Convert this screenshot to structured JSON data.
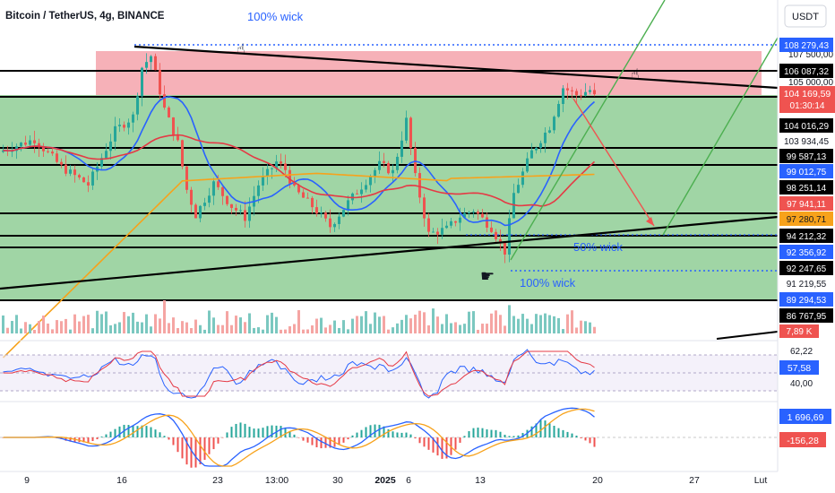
{
  "header": {
    "symbol_title": "Bitcoin / TetherUS, 4g, BINANCE",
    "currency_button": "USDT"
  },
  "colors": {
    "resistance_zone": "#f4a3ab",
    "support_zone": "#8fce95",
    "sma_blue": "#2962ff",
    "sma_red": "#e53945",
    "sma_orange": "#f7a21b",
    "trend_green": "#4caf50",
    "candle_up": "#26a69a",
    "candle_down": "#ef5350",
    "annotation_blue": "#2962ff",
    "projection_red": "#ef5350"
  },
  "annotations": {
    "wick_top": "100% wick",
    "wick_mid": "50% wick",
    "wick_bottom": "100% wick"
  },
  "chart_data": [
    {
      "type": "candlestick",
      "title": "Bitcoin / TetherUS, 4g, BINANCE",
      "x_ticks": [
        "9",
        "16",
        "23",
        "13:00",
        "30",
        "2025",
        "6",
        "13",
        "20",
        "27",
        "Lut"
      ],
      "price_scale_top": "107 500,00",
      "price_scale_mid": "105 000,00",
      "horizontal_levels": [
        {
          "label": "108 279,43",
          "style": "dotted-blue"
        },
        {
          "label": "106 087,32",
          "style": "solid-black"
        },
        {
          "label": "104 016,29",
          "style": "solid-black"
        },
        {
          "label": "103 934,45",
          "style": "plain"
        },
        {
          "label": "99 587,13",
          "style": "solid-black"
        },
        {
          "label": "99 012,75",
          "style": "blue"
        },
        {
          "label": "98 251,14",
          "style": "solid-black"
        },
        {
          "label": "97 941,11",
          "style": "red"
        },
        {
          "label": "97 280,71",
          "style": "orange"
        },
        {
          "label": "94 212,32",
          "style": "solid-black"
        },
        {
          "label": "92 356,92",
          "style": "dotted-blue"
        },
        {
          "label": "92 247,65",
          "style": "solid-black"
        },
        {
          "label": "91 219,55",
          "style": "plain"
        },
        {
          "label": "89 294,53",
          "style": "dotted-blue"
        },
        {
          "label": "86 767,95",
          "style": "solid-black"
        }
      ],
      "current_price": {
        "label": "104 169,59",
        "countdown": "01:30:14"
      },
      "volume_label": "7,89 K",
      "zones": [
        {
          "name": "resistance",
          "from": 104000,
          "to": 107600
        },
        {
          "name": "support",
          "from": 86800,
          "to": 104000
        }
      ],
      "moving_averages": [
        "blue",
        "red",
        "orange"
      ]
    },
    {
      "type": "line",
      "name": "RSI",
      "labels": {
        "upper": "62,22",
        "current": "57,58",
        "lower": "40,00"
      }
    },
    {
      "type": "line",
      "name": "MACD",
      "labels": {
        "macd": "1 696,69",
        "histogram": "-156,28"
      }
    }
  ]
}
